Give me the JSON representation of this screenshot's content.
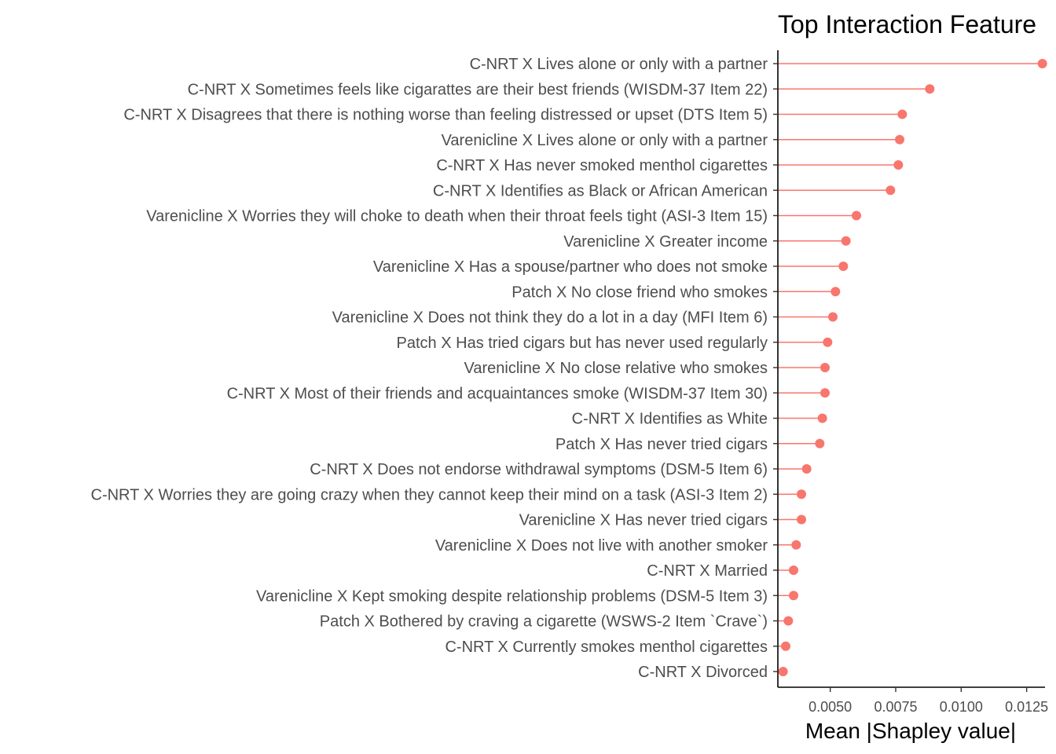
{
  "chart_data": {
    "type": "lollipop",
    "title": "Top Interaction Feature",
    "xlabel": "Mean |Shapley value|",
    "ylabel": "",
    "xlim": [
      0.003,
      0.0132
    ],
    "xticks": [
      0.005,
      0.0075,
      0.01,
      0.0125
    ],
    "xtick_labels": [
      "0.0050",
      "0.0075",
      "0.0100",
      "0.0125"
    ],
    "grid": false,
    "color": "#F8766D",
    "categories": [
      "C-NRT X Lives alone or only with a partner",
      "C-NRT X Sometimes feels like cigarattes are their best friends (WISDM-37 Item 22)",
      "C-NRT X Disagrees that there is nothing worse than feeling distressed or upset (DTS Item 5)",
      "Varenicline X Lives alone or only with a partner",
      "C-NRT X Has never smoked menthol cigarettes",
      "C-NRT X Identifies as Black or African American",
      "Varenicline X Worries they will choke to death when their throat feels tight (ASI-3 Item 15)",
      "Varenicline X Greater income",
      "Varenicline X Has a spouse/partner who does not smoke",
      "Patch X No close friend who smokes",
      "Varenicline X Does not think they do a lot in a day (MFI Item 6)",
      "Patch X Has tried cigars but has never used regularly",
      "Varenicline X No close relative who smokes",
      "C-NRT X Most of their friends and acquaintances smoke (WISDM-37 Item 30)",
      "C-NRT X Identifies as White",
      "Patch X Has never tried cigars",
      "C-NRT X Does not endorse withdrawal symptoms (DSM-5 Item 6)",
      "C-NRT X Worries they are going crazy when they cannot keep their mind on a task (ASI-3 Item 2)",
      "Varenicline X Has never tried cigars",
      "Varenicline X Does not live with another smoker",
      "C-NRT X Married",
      "Varenicline X Kept smoking despite relationship problems (DSM-5 Item 3)",
      "Patch X Bothered by craving a cigarette (WSWS-2 Item `Crave`)",
      "C-NRT X Currently smokes menthol cigarettes",
      "C-NRT X Divorced"
    ],
    "values": [
      0.0131,
      0.0088,
      0.00775,
      0.00765,
      0.0076,
      0.0073,
      0.006,
      0.0056,
      0.0055,
      0.0052,
      0.0051,
      0.0049,
      0.0048,
      0.0048,
      0.0047,
      0.0046,
      0.0041,
      0.0039,
      0.0039,
      0.0037,
      0.0036,
      0.0036,
      0.0034,
      0.0033,
      0.0032
    ]
  }
}
